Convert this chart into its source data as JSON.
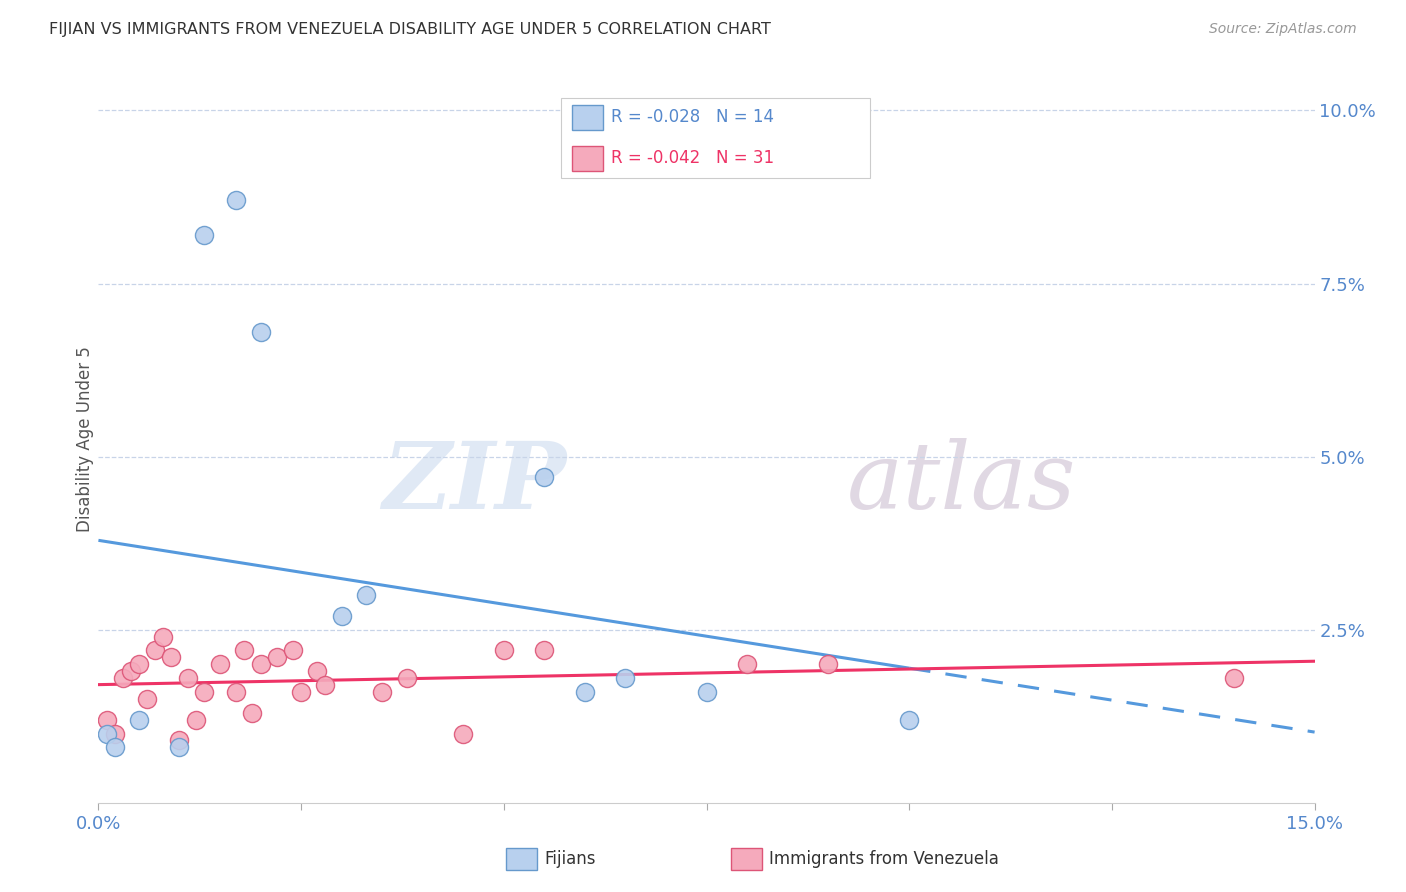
{
  "title": "FIJIAN VS IMMIGRANTS FROM VENEZUELA DISABILITY AGE UNDER 5 CORRELATION CHART",
  "source": "Source: ZipAtlas.com",
  "ylabel": "Disability Age Under 5",
  "xlim": [
    0.0,
    0.15
  ],
  "ylim": [
    0.0,
    0.105
  ],
  "yticks": [
    0.025,
    0.05,
    0.075,
    0.1
  ],
  "ytick_labels": [
    "2.5%",
    "5.0%",
    "7.5%",
    "10.0%"
  ],
  "xtick_positions": [
    0.0,
    0.025,
    0.05,
    0.075,
    0.1,
    0.125,
    0.15
  ],
  "xtick_labels": [
    "0.0%",
    "",
    "",
    "",
    "",
    "",
    "15.0%"
  ],
  "background_color": "#ffffff",
  "grid_color": "#c8d4e8",
  "fijian_color": "#b8d0ee",
  "venezuela_color": "#f5aabc",
  "fijian_edge_color": "#6699cc",
  "venezuela_edge_color": "#dd5577",
  "trend_fijian_color": "#5599dd",
  "trend_venezuela_color": "#ee3366",
  "legend_r_fijian": "R = -0.028",
  "legend_n_fijian": "N = 14",
  "legend_r_venezuela": "R = -0.042",
  "legend_n_venezuela": "N = 31",
  "legend_label_fijian": "Fijians",
  "legend_label_venezuela": "Immigrants from Venezuela",
  "watermark_zip": "ZIP",
  "watermark_atlas": "atlas",
  "fijian_x": [
    0.001,
    0.002,
    0.005,
    0.01,
    0.013,
    0.017,
    0.02,
    0.03,
    0.033,
    0.055,
    0.06,
    0.065,
    0.075,
    0.1
  ],
  "fijian_y": [
    0.01,
    0.008,
    0.012,
    0.008,
    0.082,
    0.087,
    0.068,
    0.027,
    0.03,
    0.047,
    0.016,
    0.018,
    0.016,
    0.012
  ],
  "venezuela_x": [
    0.001,
    0.002,
    0.003,
    0.004,
    0.005,
    0.006,
    0.007,
    0.008,
    0.009,
    0.01,
    0.011,
    0.012,
    0.013,
    0.015,
    0.017,
    0.018,
    0.019,
    0.02,
    0.022,
    0.024,
    0.025,
    0.027,
    0.028,
    0.035,
    0.038,
    0.045,
    0.05,
    0.055,
    0.08,
    0.09,
    0.14
  ],
  "venezuela_y": [
    0.012,
    0.01,
    0.018,
    0.019,
    0.02,
    0.015,
    0.022,
    0.024,
    0.021,
    0.009,
    0.018,
    0.012,
    0.016,
    0.02,
    0.016,
    0.022,
    0.013,
    0.02,
    0.021,
    0.022,
    0.016,
    0.019,
    0.017,
    0.016,
    0.018,
    0.01,
    0.022,
    0.022,
    0.02,
    0.02,
    0.018
  ]
}
